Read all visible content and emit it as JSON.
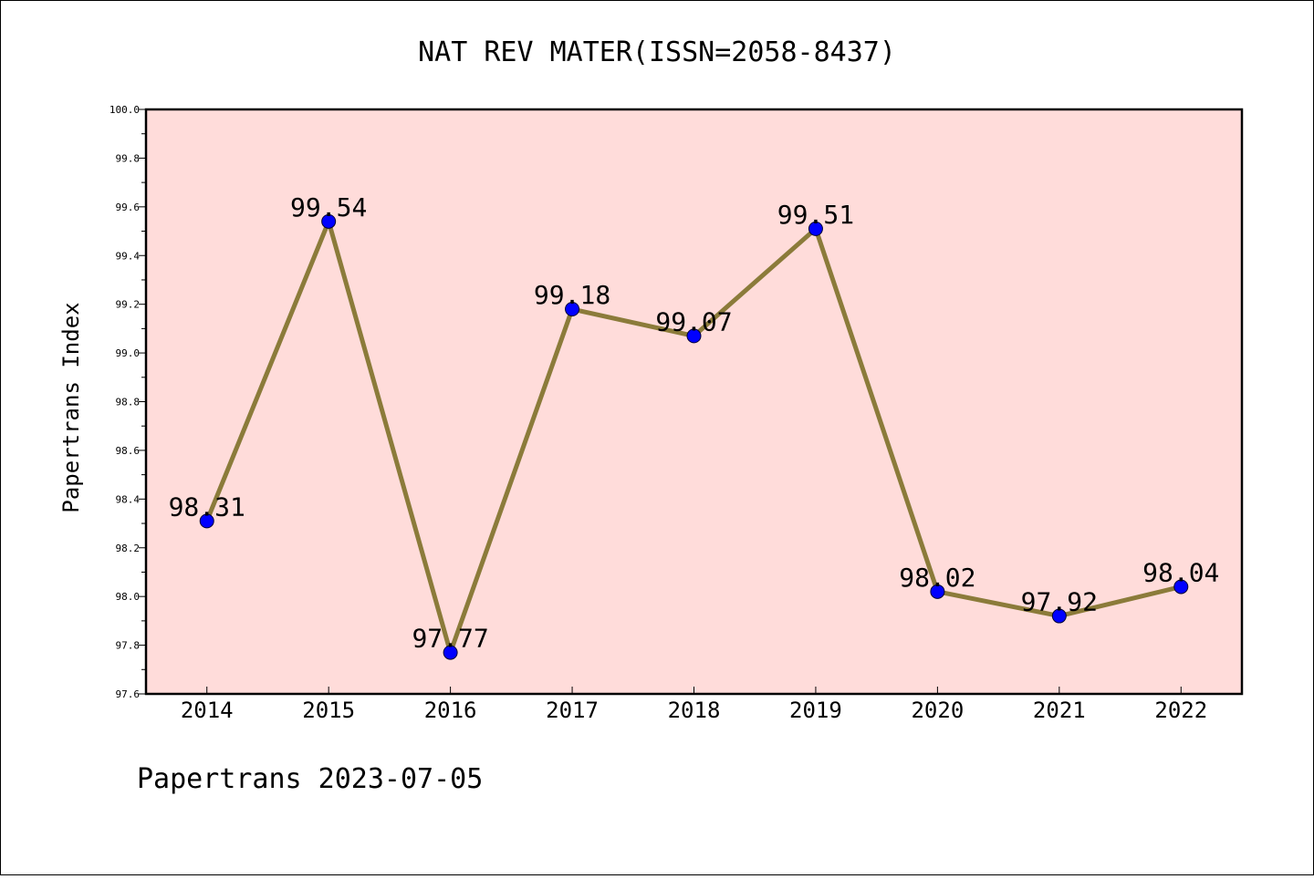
{
  "chart_data": {
    "type": "line",
    "title": "NAT REV MATER(ISSN=2058-8437)",
    "xlabel": "",
    "ylabel": "Papertrans Index",
    "categories": [
      "2014",
      "2015",
      "2016",
      "2017",
      "2018",
      "2019",
      "2020",
      "2021",
      "2022"
    ],
    "values": [
      98.31,
      99.54,
      97.77,
      99.18,
      99.07,
      99.51,
      98.02,
      97.92,
      98.04
    ],
    "data_labels": [
      "98.31",
      "99.54",
      "97.77",
      "99.18",
      "99.07",
      "99.51",
      "98.02",
      "97.92",
      "98.04"
    ],
    "ylim": [
      97.6,
      100.0
    ],
    "y_ticks": [
      "97.6",
      "97.8",
      "98.0",
      "98.2",
      "98.4",
      "98.6",
      "98.8",
      "99.0",
      "99.2",
      "99.4",
      "99.6",
      "99.8",
      "100.0"
    ],
    "grid": false,
    "legend": "none",
    "colors": {
      "plot_background": "#FFDCDA",
      "line": "#8B7B3A",
      "marker": "#0000FF"
    }
  },
  "footer": {
    "text": "Papertrans 2023-07-05"
  }
}
